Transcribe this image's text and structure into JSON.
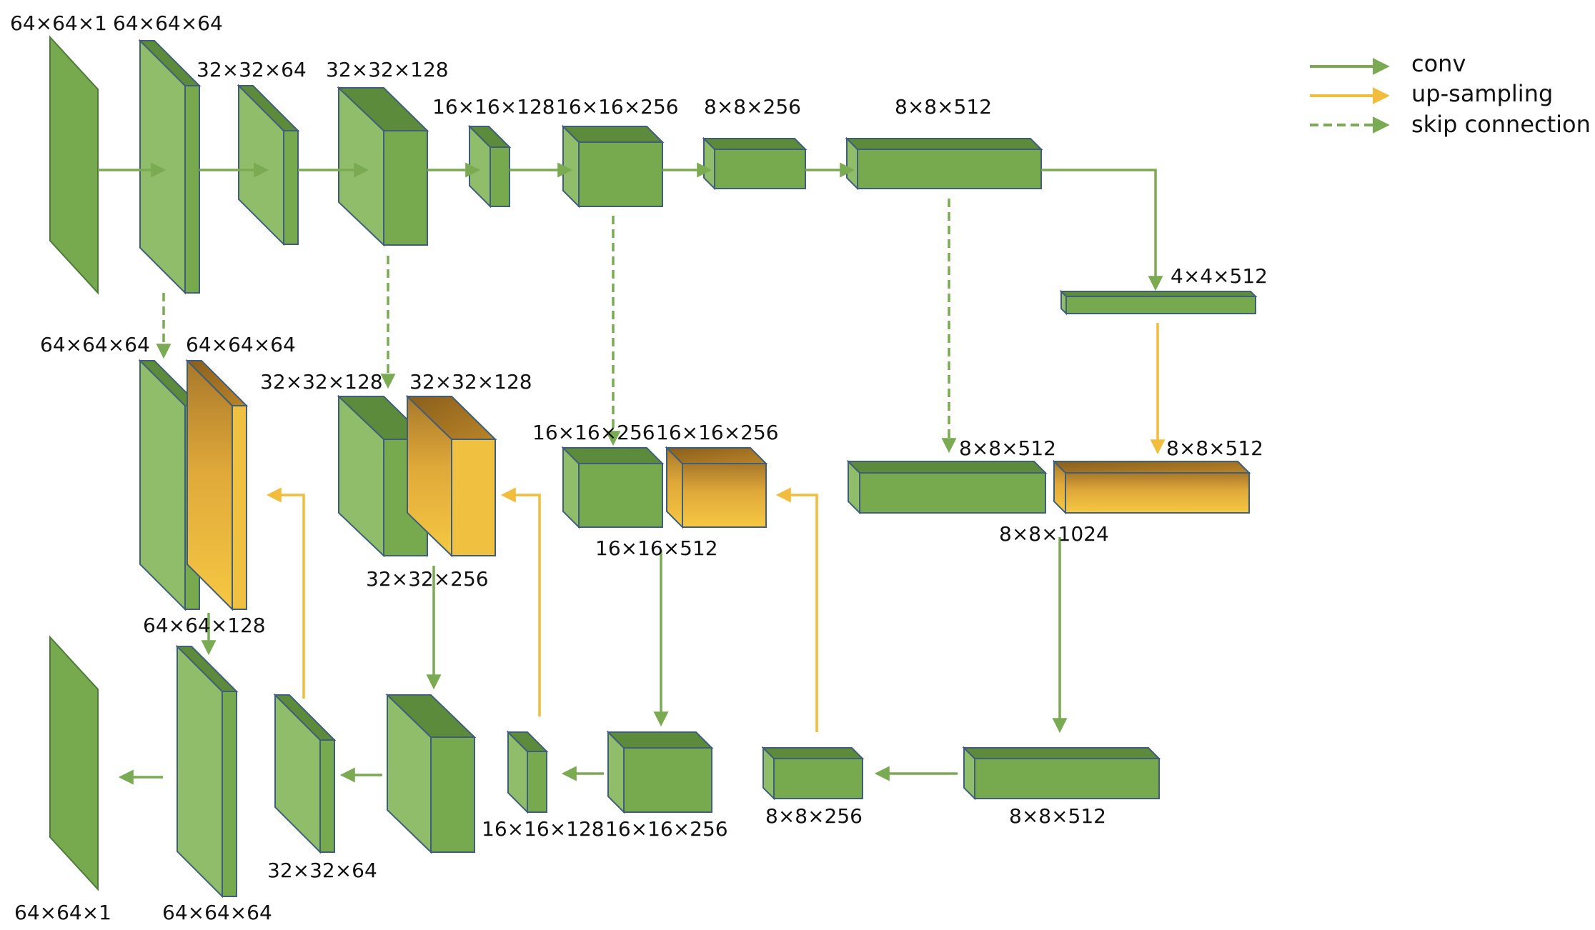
{
  "colors": {
    "conv": "#7aab52",
    "upsampling": "#f2bc3c",
    "skip": "#7aab52",
    "green_front": "#77aa4f",
    "green_top": "#5d8b3c",
    "green_side": "#8fbd6a",
    "edge": "#3f5f78"
  },
  "legend": [
    {
      "label": "conv",
      "style": "conv"
    },
    {
      "label": "up-sampling",
      "style": "upsampling"
    },
    {
      "label": "skip connection",
      "style": "skip"
    }
  ],
  "labels": {
    "in_top": "64×64×1",
    "l1": "64×64×64",
    "l2": "32×32×64",
    "l3": "32×32×128",
    "l4": "16×16×128",
    "l5": "16×16×256",
    "l6": "8×8×256",
    "l7": "8×8×512",
    "bottleneck": "4×4×512",
    "d1_skip": "64×64×64",
    "d1_up": "64×64×64",
    "d1_cat": "64×64×128",
    "d2_skip": "32×32×128",
    "d2_up": "32×32×128",
    "d2_cat": "32×32×256",
    "d3_skip": "16×16×256",
    "d3_up": "16×16×256",
    "d3_cat": "16×16×512",
    "d4_skip": "8×8×512",
    "d4_up": "8×8×512",
    "d4_cat": "8×8×1024",
    "b_out": "64×64×1",
    "b1": "64×64×64",
    "b2": "32×32×64",
    "b4": "16×16×128",
    "b5": "16×16×256",
    "b6": "8×8×256",
    "b7": "8×8×512"
  }
}
